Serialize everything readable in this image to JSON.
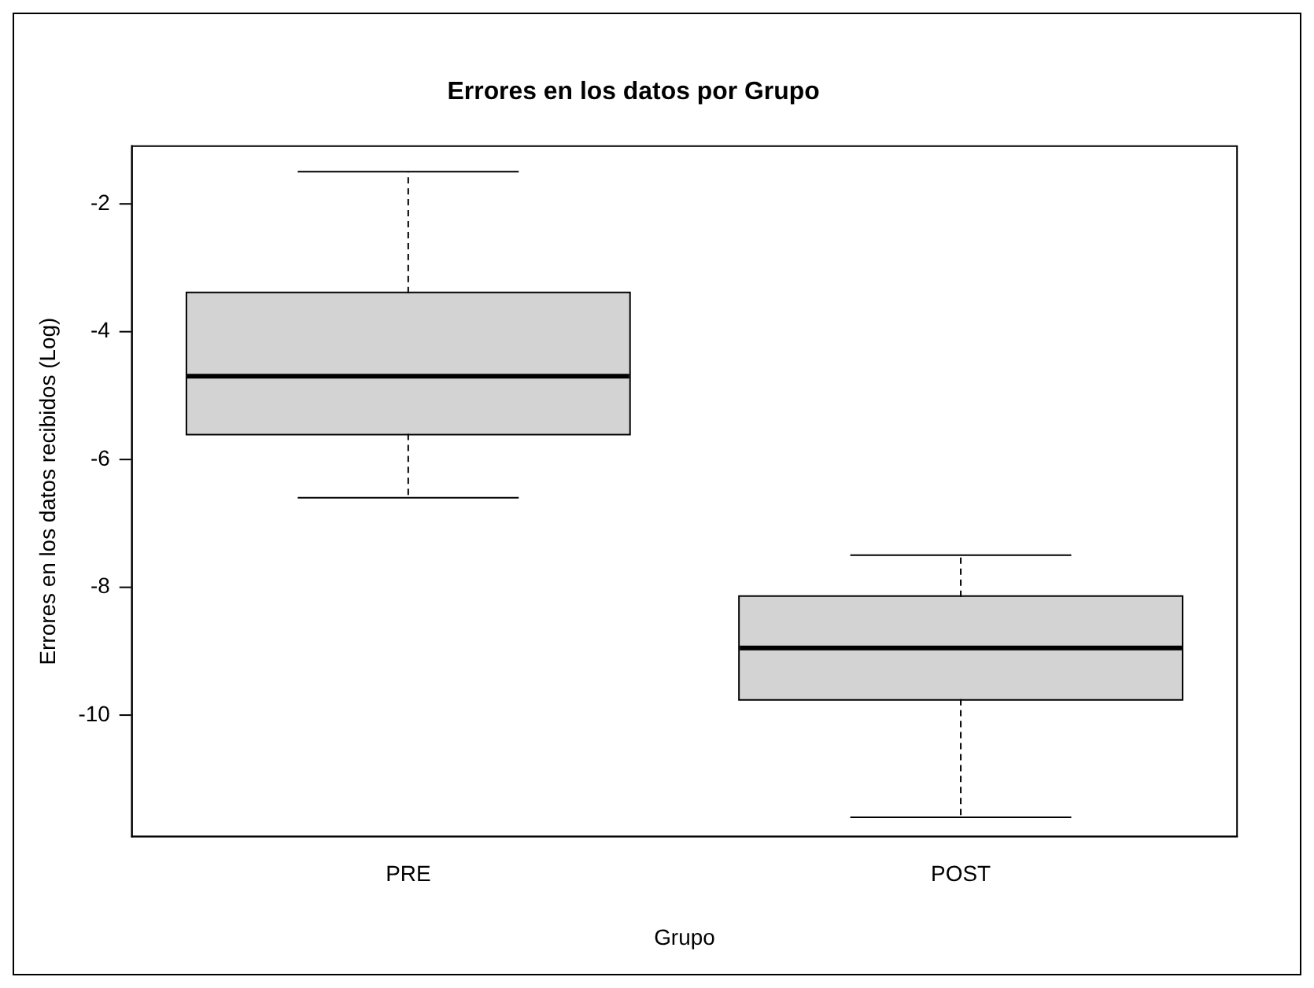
{
  "chart_data": {
    "type": "box",
    "title": "Errores en los datos por Grupo",
    "xlabel": "Grupo",
    "ylabel": "Errores en los datos recibidos (Log)",
    "categories": [
      "PRE",
      "POST"
    ],
    "boxes": [
      {
        "low": -6.6,
        "q1": -5.6,
        "median": -4.7,
        "q3": -3.4,
        "high": -1.5
      },
      {
        "low": -11.6,
        "q1": -9.75,
        "median": -8.95,
        "q3": -8.15,
        "high": -7.5
      }
    ],
    "color": "#d3d3d3",
    "ylim": [
      -11.9,
      -1.1
    ],
    "yticks": [
      -2,
      -4,
      -6,
      -8,
      -10
    ],
    "grid": false,
    "legend": false
  }
}
